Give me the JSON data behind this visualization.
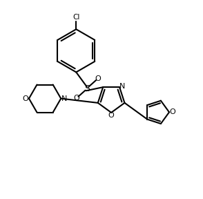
{
  "bg_color": "#ffffff",
  "line_color": "#000000",
  "line_width": 1.5,
  "figsize": [
    2.94,
    2.88
  ],
  "dpi": 100,
  "xlim": [
    0,
    10
  ],
  "ylim": [
    0,
    10
  ]
}
